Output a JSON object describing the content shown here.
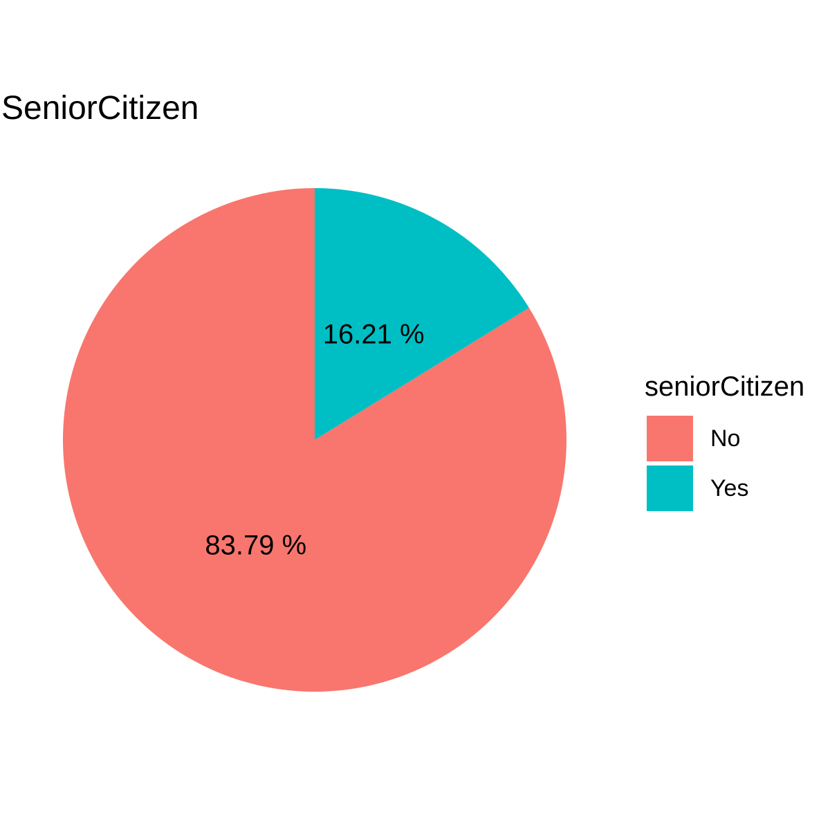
{
  "chart_data": {
    "type": "pie",
    "title": "SeniorCitizen",
    "legend": {
      "title": "seniorCitizen",
      "placement": "right"
    },
    "series": [
      {
        "name": "No",
        "value": 83.79,
        "label": "83.79 %",
        "color": "#F8766D"
      },
      {
        "name": "Yes",
        "value": 16.21,
        "label": "16.21 %",
        "color": "#00BFC4"
      }
    ],
    "start_angle_degrees": 0,
    "direction": "clockwise-from-top, last series first"
  }
}
